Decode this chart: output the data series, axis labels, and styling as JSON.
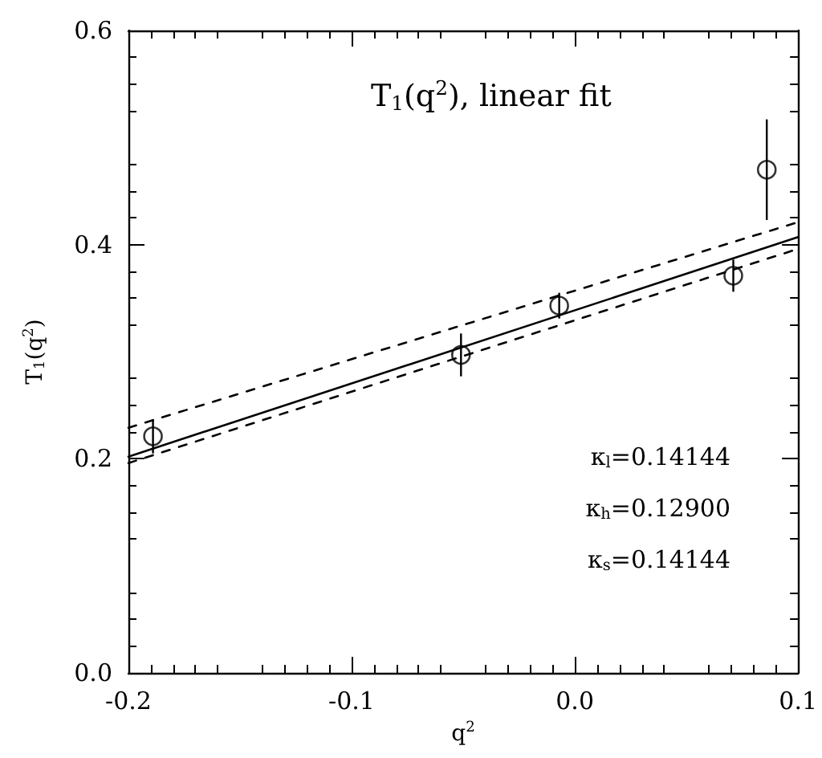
{
  "chart_data": {
    "type": "scatter",
    "title": "T$_{1}$(q$^{2}$), linear fit",
    "xlabel": "q$^{2}$",
    "ylabel": "T$_{1}$(q$^{2}$)",
    "xlim": [
      -0.2,
      0.1
    ],
    "xticks": [
      -0.2,
      -0.1,
      {
        "value": 0,
        "label": "0.0"
      },
      0.1
    ],
    "ylim": [
      0,
      0.6
    ],
    "yticks": [
      {
        "value": 0,
        "label": "0.0"
      },
      0.2,
      0.4,
      0.6
    ],
    "grid": false,
    "annotations": [
      "κ$_{l}$=0.14144",
      "κ$_{h}$=0.12900",
      "κ$_{s}$=0.14144"
    ],
    "series": [
      {
        "color": "#000000",
        "marker": "circle",
        "x": [
          -0.189,
          -0.051,
          -0.007,
          0.071,
          0.086
        ],
        "values": [
          0.221,
          0.297,
          0.343,
          0.371,
          0.47
        ],
        "errors": [
          0.016,
          0.02,
          0.012,
          0.015,
          0.047
        ]
      },
      {
        "type": "line",
        "color": "#000000",
        "line_style": "solid",
        "x": [
          -0.2,
          0.1
        ],
        "values": [
          0.202,
          0.407
        ]
      },
      {
        "type": "line",
        "color": "#000000",
        "line_style": "dashed",
        "x": [
          -0.2,
          0.1
        ],
        "values": [
          0.229,
          0.421
        ]
      },
      {
        "type": "line",
        "color": "#000000",
        "line_style": "dashed",
        "x": [
          -0.2,
          0.1
        ],
        "values": [
          0.196,
          0.396
        ]
      }
    ]
  }
}
